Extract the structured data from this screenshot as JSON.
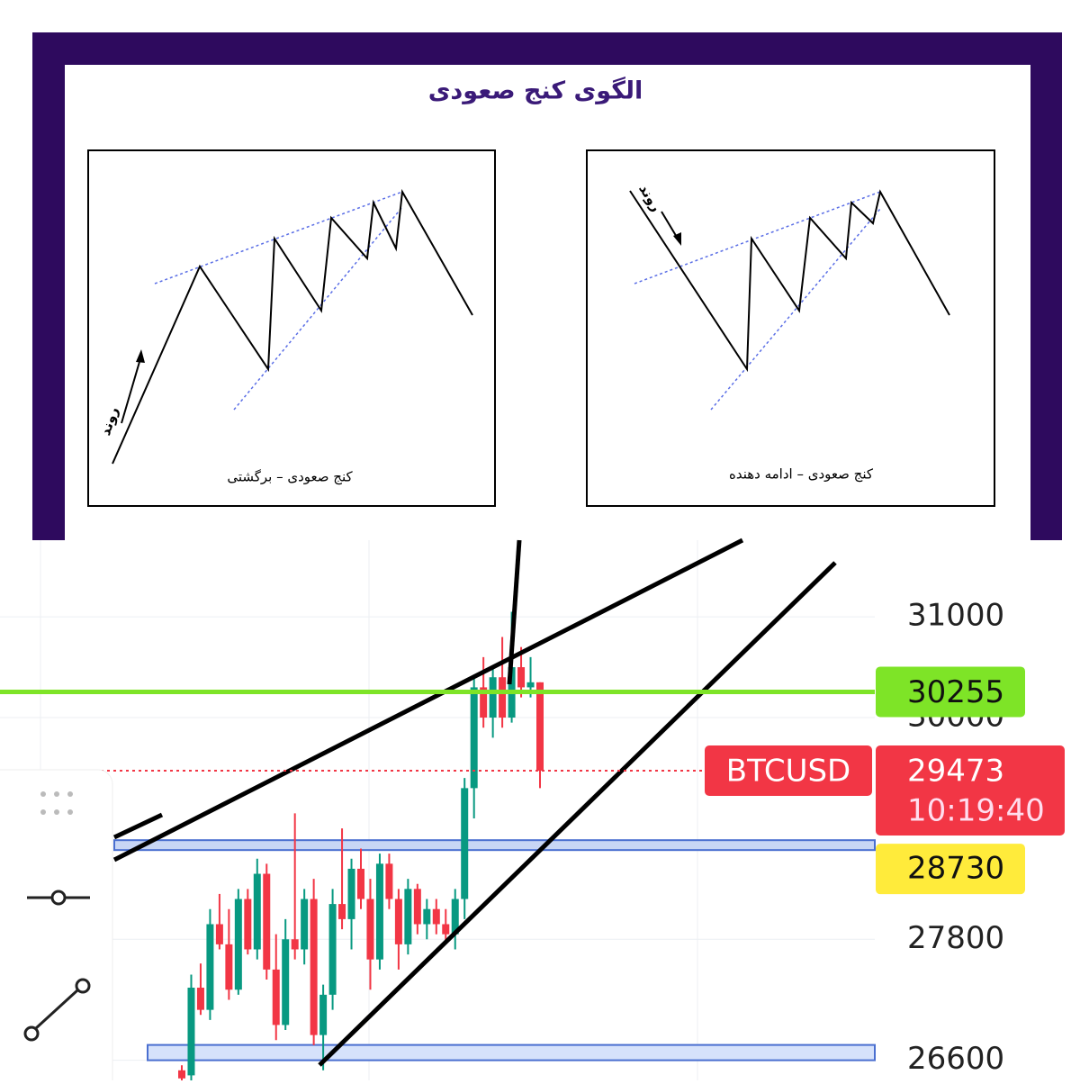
{
  "diagram": {
    "title": "الگوی کنج صعودی",
    "panels": [
      {
        "caption": "کنج صعودی – برگشتی",
        "trend_label": "روند"
      },
      {
        "caption": "کنج صعودی – ادامه دهنده",
        "trend_label": "روند"
      }
    ]
  },
  "chart_data": {
    "type": "candlestick",
    "symbol": "BTCUSD",
    "ylim": [
      26400,
      31760
    ],
    "yticks": [
      26600,
      27800,
      30000,
      31000
    ],
    "grid": true,
    "up_color": "#089981",
    "down_color": "#f23645",
    "candles": {
      "open": [
        26500,
        26450,
        27320,
        27100,
        27950,
        27750,
        27300,
        28200,
        27700,
        28450,
        27500,
        26950,
        27800,
        27700,
        28200,
        26850,
        27250,
        28150,
        28000,
        28500,
        28200,
        27600,
        28550,
        28200,
        27750,
        28300,
        27950,
        28100,
        27950,
        27850,
        28200,
        29300,
        30300,
        30000,
        30400,
        30000,
        30500,
        30300,
        30350
      ],
      "high": [
        26550,
        27450,
        27560,
        28100,
        28250,
        28100,
        28300,
        28300,
        28600,
        28550,
        27850,
        28000,
        29050,
        28300,
        28400,
        27350,
        28300,
        28900,
        28600,
        28700,
        28400,
        28650,
        28650,
        28300,
        28400,
        28350,
        28200,
        28200,
        28100,
        28300,
        29400,
        30400,
        30600,
        30500,
        30800,
        31050,
        30700,
        30600,
        30350
      ],
      "low": [
        26380,
        26400,
        27050,
        27000,
        27700,
        27200,
        27250,
        27650,
        27600,
        27400,
        26800,
        26900,
        27600,
        27550,
        26750,
        26500,
        27100,
        27900,
        27700,
        28100,
        27300,
        27500,
        28100,
        27500,
        27650,
        27850,
        27800,
        27850,
        27750,
        27700,
        28000,
        29000,
        29900,
        29800,
        29900,
        29950,
        30200,
        30200,
        29300
      ],
      "close": [
        26420,
        27320,
        27100,
        27950,
        27750,
        27300,
        28200,
        27700,
        28450,
        27500,
        26950,
        27800,
        27700,
        28200,
        26850,
        27250,
        28150,
        28000,
        28500,
        28200,
        27600,
        28550,
        28200,
        27750,
        28300,
        27950,
        28100,
        27950,
        27850,
        28200,
        29300,
        30300,
        30000,
        30400,
        30000,
        30500,
        30300,
        30350,
        29473
      ]
    },
    "price_lines": [
      {
        "value": 30255,
        "color": "#7ee427"
      },
      {
        "value": 28730,
        "color": "#ffeb3b"
      }
    ],
    "last_price": 29473,
    "countdown": "10:19:40"
  }
}
